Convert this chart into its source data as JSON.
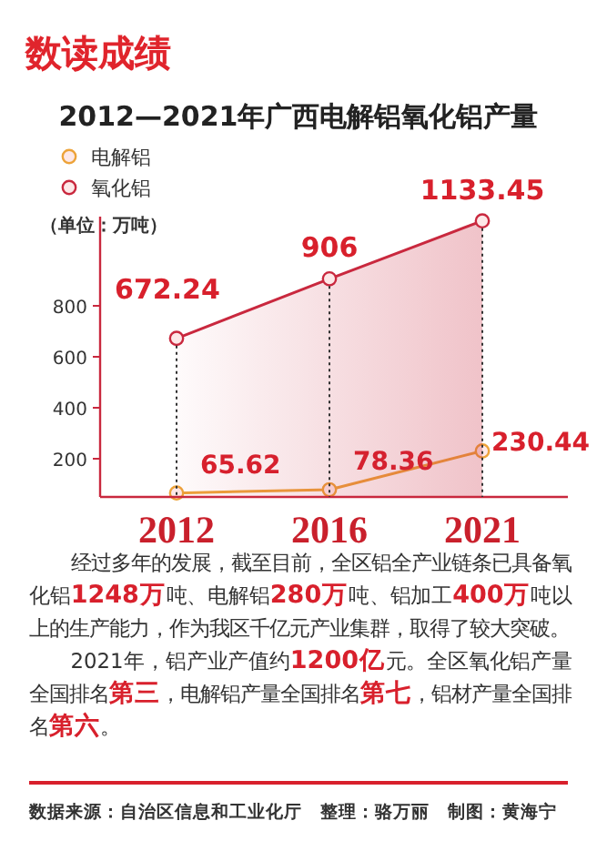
{
  "chart_data": {
    "type": "line",
    "title": "2012—2021年广西电解铝氧化铝产量",
    "ylabel": "（单位：万吨）",
    "categories": [
      "2012",
      "2016",
      "2021"
    ],
    "series": [
      {
        "name": "电解铝",
        "color": "#eda33a",
        "values": [
          65.62,
          78.36,
          230.44
        ]
      },
      {
        "name": "氧化铝",
        "type": "area",
        "color": "#c9283e",
        "values": [
          672.24,
          906,
          1133.45
        ]
      }
    ],
    "ylim": [
      50,
      1150
    ],
    "yticks": [
      200,
      400,
      600,
      800
    ],
    "data_labels": true,
    "legend": "top left",
    "marker": "circle",
    "grid": "x",
    "annotations": [
      "数读成绩",
      "经过多年的发展，截至目前，全区铝全产业链条已具备氧化铝**1248万**吨、电解铝**280万**吨、铝加工**400万**吨以上的生产能力，作为我区千亿元产业集群，取得了较大突破。",
      "2021年，铝产业产值约**1200亿**元。全区氧化铝产量全国排名**第三**，电解铝产量全国排名**第七**，铝材产量全国排名**第六**。",
      "数据来源：自治区信息和工业化厅　整理：骆万丽　制图：黄海宁"
    ]
  }
}
